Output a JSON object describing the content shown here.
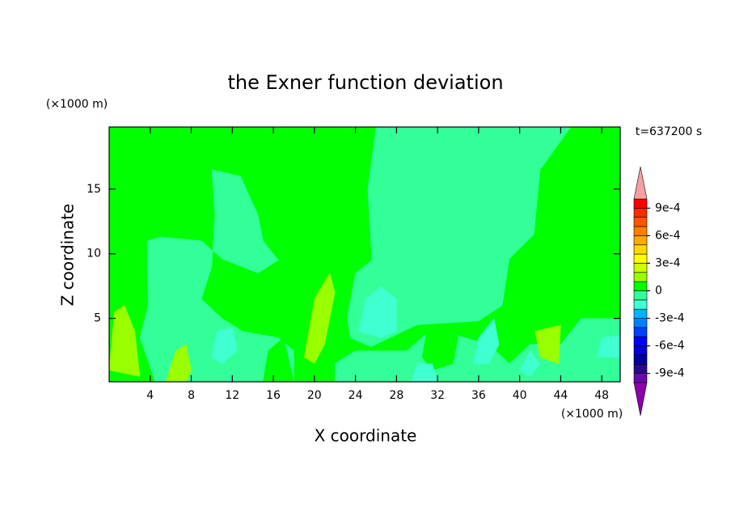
{
  "chart_data": {
    "type": "contour",
    "title": "the Exner function deviation",
    "x_label": "X coordinate",
    "y_label": "Z coordinate",
    "x_unit": "(×1000 m)",
    "y_unit": "(×1000 m)",
    "time_label": "t=637200 s",
    "xlim": [
      0,
      49.8
    ],
    "ylim": [
      0.1,
      19.8
    ],
    "xticks": [
      4,
      8,
      12,
      16,
      20,
      24,
      28,
      32,
      36,
      40,
      44,
      48
    ],
    "yticks": [
      5,
      10,
      15
    ],
    "colorbar": {
      "levels": [
        -0.001,
        -0.0009,
        -0.0008,
        -0.0007,
        -0.0006,
        -0.0005,
        -0.0004,
        -0.0003,
        -0.0002,
        -0.0001,
        0,
        0.0001,
        0.0002,
        0.0003,
        0.0004,
        0.0005,
        0.0006,
        0.0007,
        0.0008,
        0.0009,
        0.001
      ],
      "colors": [
        "#6a0aa8",
        "#2a0a8a",
        "#0000a0",
        "#0000d0",
        "#0000ff",
        "#0040ff",
        "#0080ff",
        "#00b4ff",
        "#40ffd0",
        "#33ff99",
        "#00ff00",
        "#99ff00",
        "#ccff00",
        "#ffff00",
        "#ffd700",
        "#ffaa00",
        "#ff8000",
        "#ff5500",
        "#ff2a00",
        "#ff0000"
      ],
      "under_color": "#8b00a8",
      "over_color": "#f4a0a0",
      "ticks": [
        {
          "value": 0.0009,
          "label": "9e-4"
        },
        {
          "value": 0.0006,
          "label": "6e-4"
        },
        {
          "value": 0.0003,
          "label": "3e-4"
        },
        0,
        {
          "value": -0.0003,
          "label": "-3e-4"
        },
        {
          "value": -0.0006,
          "label": "-6e-4"
        },
        {
          "value": -0.0009,
          "label": "-9e-4"
        }
      ]
    },
    "regions": [
      {
        "value": 5e-05,
        "x": [
          0,
          49.8,
          49.8,
          0
        ],
        "z": [
          0.1,
          0.1,
          19.8,
          19.8
        ]
      },
      {
        "value": -5e-05,
        "x": [
          26,
          45,
          42,
          41.4,
          39,
          38.3,
          36,
          30,
          25.5,
          23.5,
          23.2,
          24,
          25.6,
          25.2
        ],
        "z": [
          19.8,
          19.8,
          16.5,
          11.5,
          9.6,
          6,
          4.8,
          4.5,
          2.8,
          3.5,
          5,
          8.5,
          9.5,
          15
        ]
      },
      {
        "value": -5e-05,
        "x": [
          10,
          12.8,
          14.5,
          15,
          16.5,
          14.5,
          11,
          9,
          5,
          3.7,
          3.8,
          3,
          4.5,
          18,
          18,
          16.5,
          13,
          11,
          9,
          10,
          10.3
        ],
        "z": [
          16.5,
          16,
          13,
          11,
          9.5,
          8.5,
          9.6,
          11,
          11.3,
          11,
          6,
          3.5,
          0.1,
          0.1,
          2.5,
          3.5,
          4,
          5,
          6.5,
          9,
          13
        ]
      },
      {
        "value": -5e-05,
        "x": [
          22,
          49.8,
          49.8,
          46,
          44,
          41,
          39,
          37,
          31.5,
          29,
          24,
          22
        ],
        "z": [
          0.1,
          0.1,
          5,
          5,
          3,
          3,
          1.5,
          3,
          4.2,
          2.5,
          2.5,
          1.5
        ]
      },
      {
        "value": 5e-05,
        "x": [
          31,
          30.5,
          31.5,
          33.5,
          34,
          33
        ],
        "z": [
          4.2,
          2,
          1,
          1.5,
          3.5,
          4.5
        ]
      },
      {
        "value": 5e-05,
        "x": [
          15,
          15.5,
          17,
          18
        ],
        "z": [
          0.1,
          2.5,
          3.5,
          0.1
        ]
      },
      {
        "value": 0.00015,
        "x": [
          0,
          0.5,
          1.5,
          2.5,
          3
        ],
        "z": [
          1,
          5.5,
          6,
          4,
          0.5
        ]
      },
      {
        "value": 0.00015,
        "x": [
          19,
          20,
          21.5,
          22,
          21,
          20
        ],
        "z": [
          2,
          6.5,
          8.5,
          7,
          3,
          1.5
        ]
      },
      {
        "value": 0.00015,
        "x": [
          5.5,
          6.5,
          7.5,
          8,
          7.5
        ],
        "z": [
          0.1,
          2.5,
          3,
          1,
          0.1
        ]
      },
      {
        "value": 0.00015,
        "x": [
          41.5,
          42,
          43.8,
          44
        ],
        "z": [
          4,
          2,
          1.5,
          4.5
        ]
      },
      {
        "value": -0.00015,
        "x": [
          24.3,
          25,
          26.5,
          28,
          28,
          26.5
        ],
        "z": [
          4,
          6.5,
          7.5,
          6.5,
          4,
          3.5
        ]
      },
      {
        "value": -0.00015,
        "x": [
          10,
          10.5,
          12,
          12.5,
          11
        ],
        "z": [
          2,
          4,
          4.3,
          2.5,
          1.5
        ]
      },
      {
        "value": -0.00015,
        "x": [
          35.5,
          36,
          37.5,
          38,
          37
        ],
        "z": [
          1.5,
          3.5,
          5,
          3,
          1.5
        ]
      },
      {
        "value": -0.00015,
        "x": [
          40,
          41,
          42,
          41
        ],
        "z": [
          1,
          2.5,
          1.5,
          0.5
        ]
      },
      {
        "value": -0.00015,
        "x": [
          47.5,
          48,
          49.8,
          49.8
        ],
        "z": [
          2,
          3.5,
          3.7,
          2
        ]
      },
      {
        "value": -0.00015,
        "x": [
          29.5,
          30,
          31.5,
          32
        ],
        "z": [
          0.1,
          1.5,
          1.5,
          0.1
        ]
      }
    ]
  }
}
